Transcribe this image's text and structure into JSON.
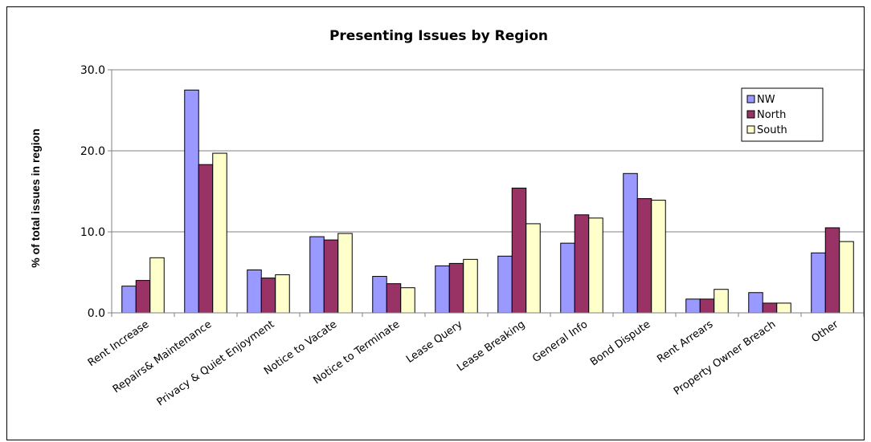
{
  "chart_data": {
    "type": "bar",
    "title": "Presenting Issues by Region",
    "xlabel": "",
    "ylabel": "% of total issues in region",
    "ylim": [
      0,
      30
    ],
    "yticks": [
      "0.0",
      "10.0",
      "20.0",
      "30.0"
    ],
    "grid": true,
    "legend_position": "top-right",
    "categories": [
      "Rent Increase",
      "Repairs& Maintenance",
      "Privacy & Quiet Enjoyment",
      "Notice to Vacate",
      "Notice to Terminate",
      "Lease Query",
      "Lease Breaking",
      "General Info",
      "Bond Dispute",
      "Rent Arrears",
      "Property Owner Breach",
      "Other"
    ],
    "series": [
      {
        "name": "NW",
        "color": "#9999ff",
        "values": [
          3.3,
          27.5,
          5.3,
          9.4,
          4.5,
          5.8,
          7.0,
          8.6,
          17.2,
          1.7,
          2.5,
          7.4
        ]
      },
      {
        "name": "North",
        "color": "#993366",
        "values": [
          4.0,
          18.3,
          4.3,
          9.0,
          3.6,
          6.1,
          15.4,
          12.1,
          14.1,
          1.7,
          1.2,
          10.5
        ]
      },
      {
        "name": "South",
        "color": "#ffffcc",
        "values": [
          6.8,
          19.7,
          4.7,
          9.8,
          3.1,
          6.6,
          11.0,
          11.7,
          13.9,
          2.9,
          1.2,
          8.8
        ]
      }
    ]
  }
}
